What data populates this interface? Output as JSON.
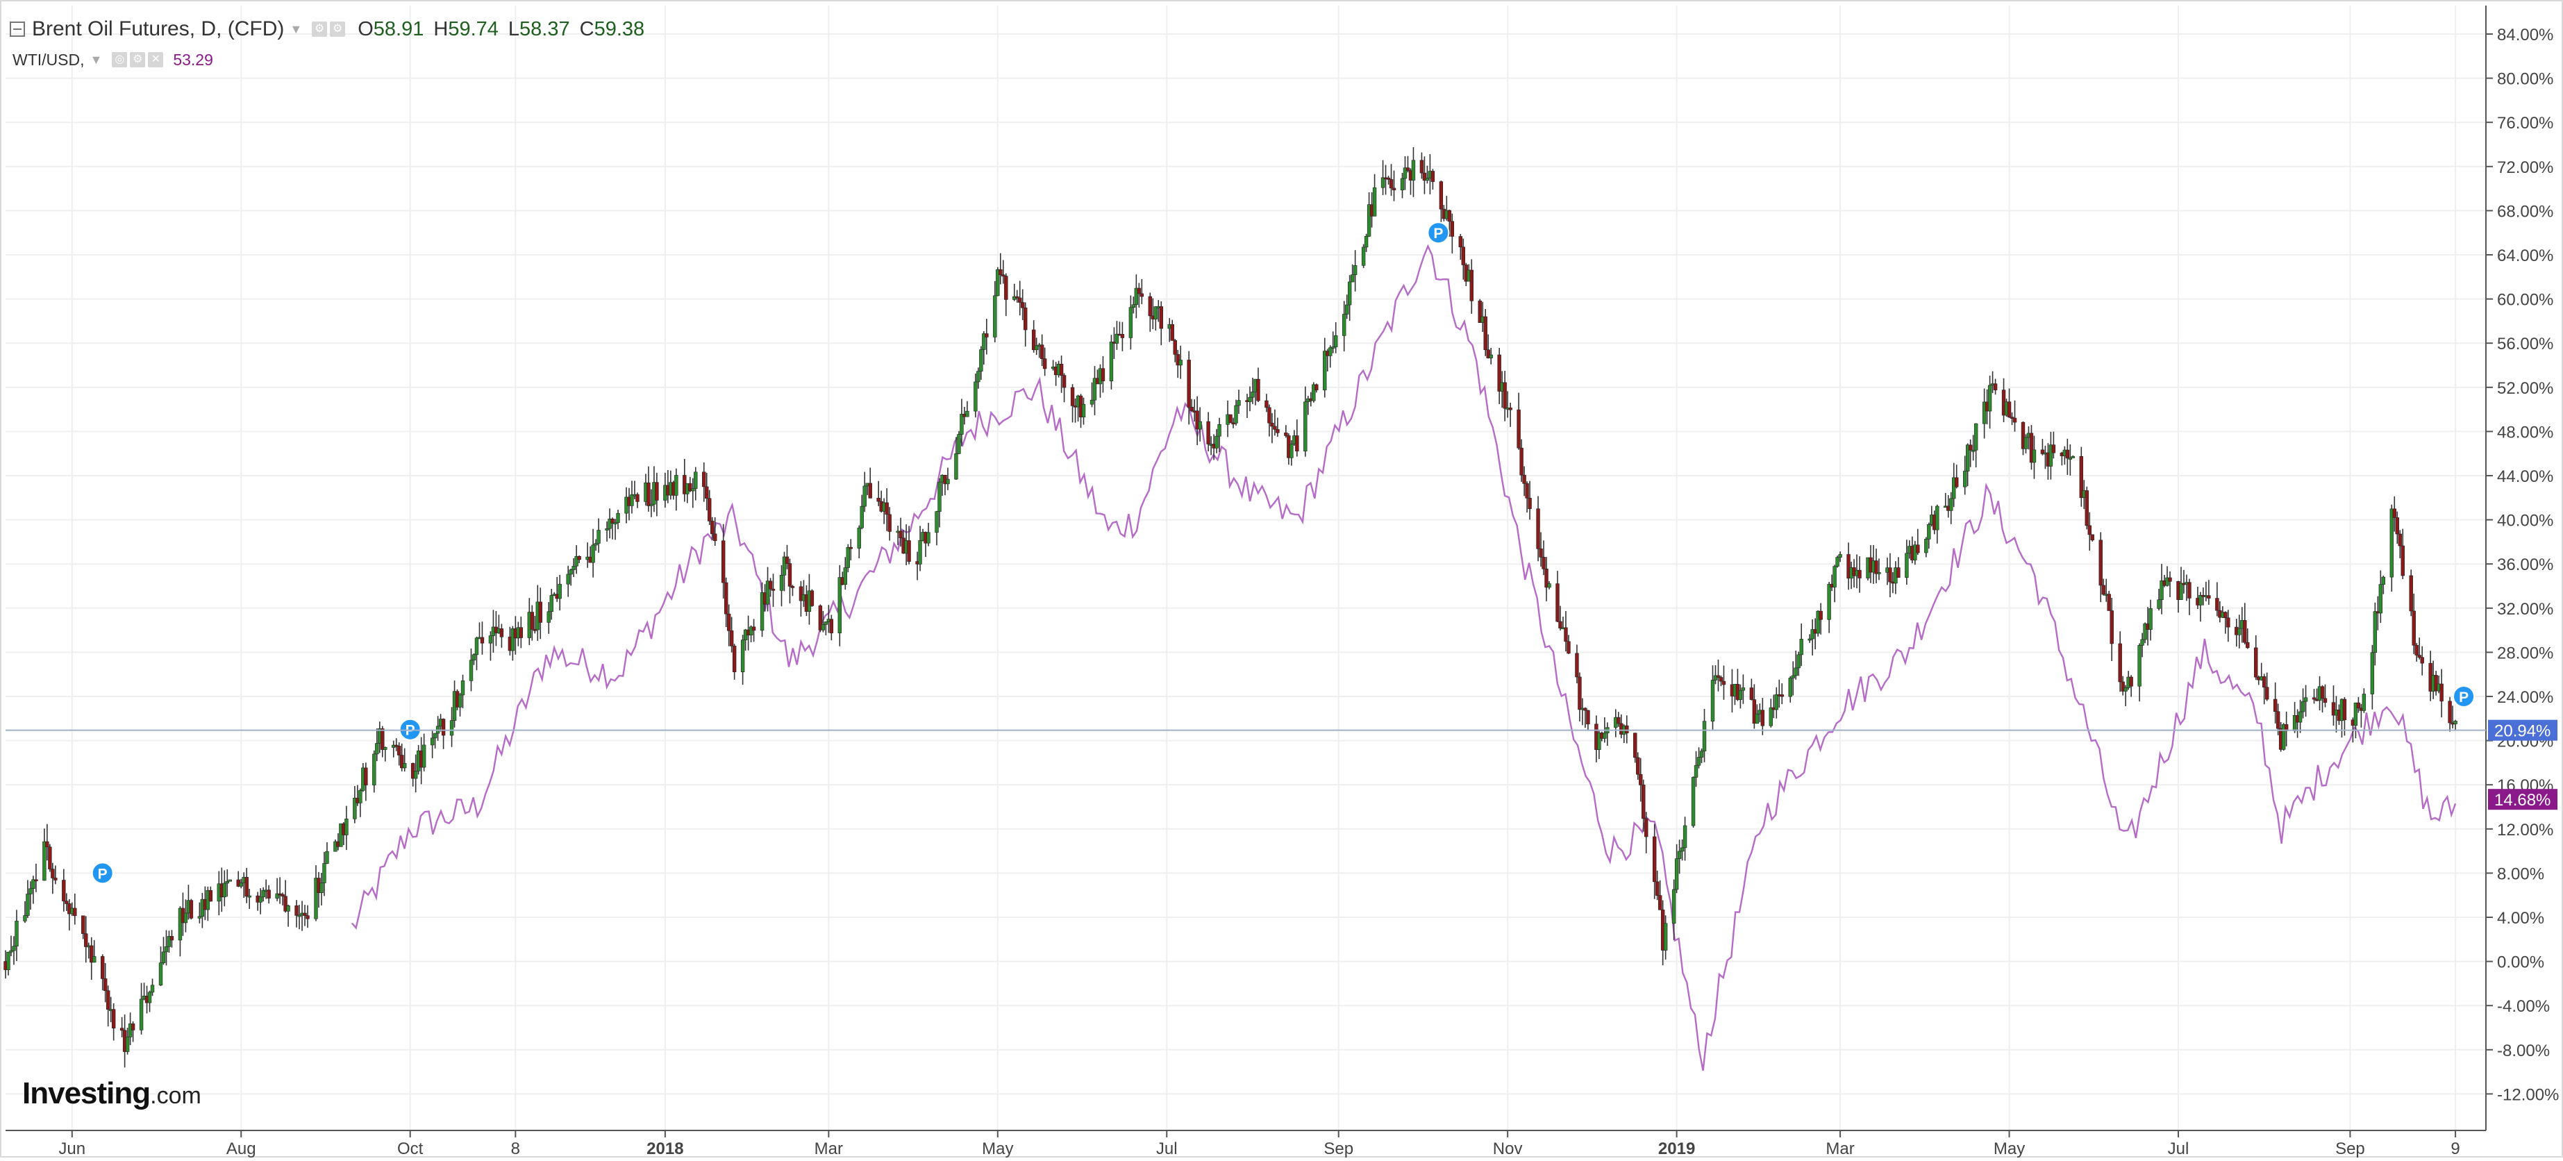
{
  "header": {
    "symbol": "Brent Oil Futures, D, (CFD)",
    "ohlc": [
      {
        "key": "O",
        "value": "58.91"
      },
      {
        "key": "H",
        "value": "59.74"
      },
      {
        "key": "L",
        "value": "58.37"
      },
      {
        "key": "C",
        "value": "59.38"
      }
    ],
    "compare_symbol": "WTI/USD,",
    "compare_value": "53.29"
  },
  "brand": {
    "name": "Investing",
    "suffix": ".com"
  },
  "colors": {
    "up": "#2e8b2e",
    "down": "#8b1a1a",
    "wti_line": "#b56bc7",
    "brent_badge": "#4a6fd6",
    "wti_badge": "#8a1a8a",
    "p_marker": "#2196f3",
    "grid": "#efefef"
  },
  "p_marker_label": "P",
  "chart_data": {
    "type": "line",
    "title": "",
    "xlabel": "",
    "ylabel": "",
    "y_unit": "%",
    "ylim": [
      -14,
      86
    ],
    "grid": true,
    "legend_placement": "top-left",
    "x_tick_labels": [
      "Jun",
      "Aug",
      "Oct",
      "8",
      "2018",
      "Mar",
      "May",
      "Jul",
      "Sep",
      "Nov",
      "2019",
      "Mar",
      "May",
      "Jul",
      "Sep",
      "9"
    ],
    "x_tick_dates": [
      "2017-06-01",
      "2017-08-01",
      "2017-10-01",
      "2017-11-08",
      "2018-01-01",
      "2018-03-01",
      "2018-05-01",
      "2018-07-01",
      "2018-09-01",
      "2018-11-01",
      "2019-01-01",
      "2019-03-01",
      "2019-05-01",
      "2019-07-01",
      "2019-09-01",
      "2019-10-09"
    ],
    "x_range": [
      "2017-05-08",
      "2019-10-20"
    ],
    "y_tick_labels": [
      "84.00%",
      "80.00%",
      "76.00%",
      "72.00%",
      "68.00%",
      "64.00%",
      "60.00%",
      "56.00%",
      "52.00%",
      "48.00%",
      "44.00%",
      "40.00%",
      "36.00%",
      "32.00%",
      "28.00%",
      "24.00%",
      "20.00%",
      "16.00%",
      "12.00%",
      "8.00%",
      "4.00%",
      "0.00%",
      "-4.00%",
      "-8.00%",
      "-12.00%"
    ],
    "y_ticks": [
      84,
      80,
      76,
      72,
      68,
      64,
      60,
      56,
      52,
      48,
      44,
      40,
      36,
      32,
      28,
      24,
      20,
      16,
      12,
      8,
      4,
      0,
      -4,
      -8,
      -12
    ],
    "series": [
      {
        "name": "Brent Oil Futures",
        "style": "candlestick",
        "dates": [
          "2017-05-08",
          "2017-05-22",
          "2017-06-05",
          "2017-06-20",
          "2017-07-10",
          "2017-08-01",
          "2017-08-25",
          "2017-09-20",
          "2017-10-01",
          "2017-10-15",
          "2017-10-26",
          "2017-11-08",
          "2017-12-01",
          "2017-12-20",
          "2018-01-15",
          "2018-01-26",
          "2018-02-12",
          "2018-03-01",
          "2018-03-15",
          "2018-04-01",
          "2018-04-20",
          "2018-05-01",
          "2018-05-17",
          "2018-06-01",
          "2018-06-20",
          "2018-07-01",
          "2018-07-15",
          "2018-08-01",
          "2018-08-15",
          "2018-09-01",
          "2018-09-15",
          "2018-10-03",
          "2018-10-15",
          "2018-11-01",
          "2018-11-15",
          "2018-12-01",
          "2018-12-15",
          "2018-12-27",
          "2019-01-15",
          "2019-02-01",
          "2019-02-15",
          "2019-03-01",
          "2019-03-20",
          "2019-04-10",
          "2019-04-25",
          "2019-05-10",
          "2019-05-25",
          "2019-06-12",
          "2019-06-25",
          "2019-07-10",
          "2019-07-25",
          "2019-08-07",
          "2019-08-20",
          "2019-09-05",
          "2019-09-16",
          "2019-09-25",
          "2019-10-09"
        ],
        "values": [
          0,
          10,
          2,
          -8,
          4,
          7,
          5,
          20,
          17,
          22,
          30,
          29,
          36,
          42,
          44,
          27,
          36,
          30,
          43,
          36,
          50,
          62,
          55,
          50,
          60,
          58,
          46,
          52,
          46,
          58,
          70,
          72,
          64,
          50,
          35,
          20,
          22,
          2,
          26,
          22,
          28,
          36,
          35,
          42,
          52,
          46,
          45,
          24,
          34,
          33,
          30,
          20,
          24,
          22,
          41,
          28,
          21
        ]
      },
      {
        "name": "WTI/USD",
        "style": "line",
        "dates": [
          "2017-09-10",
          "2017-10-01",
          "2017-10-25",
          "2017-11-20",
          "2017-12-15",
          "2018-01-15",
          "2018-01-26",
          "2018-02-15",
          "2018-03-10",
          "2018-04-01",
          "2018-04-20",
          "2018-05-15",
          "2018-06-10",
          "2018-06-20",
          "2018-07-05",
          "2018-08-01",
          "2018-08-17",
          "2018-09-05",
          "2018-09-20",
          "2018-10-03",
          "2018-10-20",
          "2018-11-05",
          "2018-11-25",
          "2018-12-08",
          "2018-12-24",
          "2019-01-10",
          "2019-02-01",
          "2019-03-01",
          "2019-03-25",
          "2019-04-23",
          "2019-05-10",
          "2019-05-31",
          "2019-06-12",
          "2019-06-28",
          "2019-07-10",
          "2019-07-30",
          "2019-08-07",
          "2019-08-25",
          "2019-09-16",
          "2019-09-30",
          "2019-10-09"
        ],
        "values": [
          3,
          12,
          14,
          28,
          26,
          38,
          40,
          27,
          33,
          40,
          48,
          52,
          39,
          40,
          50,
          42,
          40,
          50,
          58,
          65,
          55,
          38,
          20,
          10,
          12,
          -9,
          13,
          23,
          28,
          42,
          35,
          20,
          10,
          20,
          28,
          22,
          12,
          18,
          24,
          13,
          14
        ]
      }
    ],
    "current_labels": [
      {
        "series": "Brent Oil Futures",
        "text": "20.94%",
        "value": 20.94
      },
      {
        "series": "WTI/USD",
        "text": "14.68%",
        "value": 14.68
      }
    ],
    "p_markers": [
      {
        "date": "2017-06-12",
        "value": 8
      },
      {
        "date": "2017-10-01",
        "value": 21
      },
      {
        "date": "2018-10-07",
        "value": 66
      },
      {
        "date": "2019-10-12",
        "value": 24
      }
    ]
  }
}
